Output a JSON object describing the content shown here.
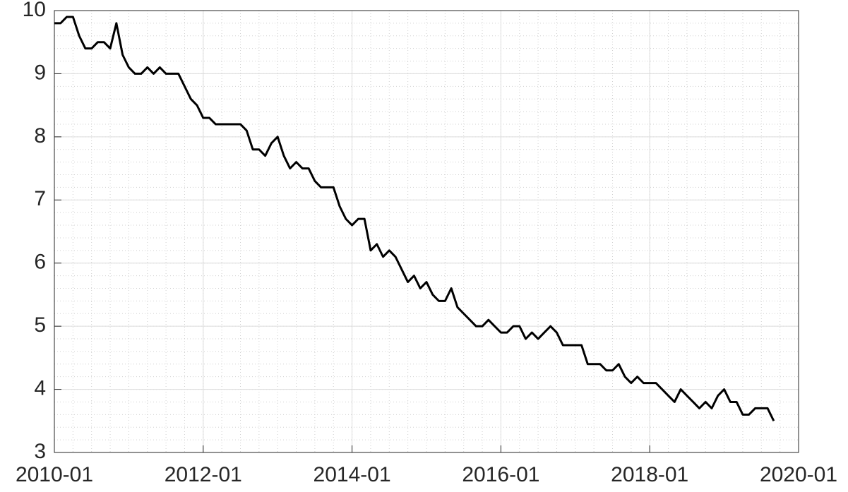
{
  "chart_data": {
    "type": "line",
    "x": [
      "2010-01",
      "2010-02",
      "2010-03",
      "2010-04",
      "2010-05",
      "2010-06",
      "2010-07",
      "2010-08",
      "2010-09",
      "2010-10",
      "2010-11",
      "2010-12",
      "2011-01",
      "2011-02",
      "2011-03",
      "2011-04",
      "2011-05",
      "2011-06",
      "2011-07",
      "2011-08",
      "2011-09",
      "2011-10",
      "2011-11",
      "2011-12",
      "2012-01",
      "2012-02",
      "2012-03",
      "2012-04",
      "2012-05",
      "2012-06",
      "2012-07",
      "2012-08",
      "2012-09",
      "2012-10",
      "2012-11",
      "2012-12",
      "2013-01",
      "2013-02",
      "2013-03",
      "2013-04",
      "2013-05",
      "2013-06",
      "2013-07",
      "2013-08",
      "2013-09",
      "2013-10",
      "2013-11",
      "2013-12",
      "2014-01",
      "2014-02",
      "2014-03",
      "2014-04",
      "2014-05",
      "2014-06",
      "2014-07",
      "2014-08",
      "2014-09",
      "2014-10",
      "2014-11",
      "2014-12",
      "2015-01",
      "2015-02",
      "2015-03",
      "2015-04",
      "2015-05",
      "2015-06",
      "2015-07",
      "2015-08",
      "2015-09",
      "2015-10",
      "2015-11",
      "2015-12",
      "2016-01",
      "2016-02",
      "2016-03",
      "2016-04",
      "2016-05",
      "2016-06",
      "2016-07",
      "2016-08",
      "2016-09",
      "2016-10",
      "2016-11",
      "2016-12",
      "2017-01",
      "2017-02",
      "2017-03",
      "2017-04",
      "2017-05",
      "2017-06",
      "2017-07",
      "2017-08",
      "2017-09",
      "2017-10",
      "2017-11",
      "2017-12",
      "2018-01",
      "2018-02",
      "2018-03",
      "2018-04",
      "2018-05",
      "2018-06",
      "2018-07",
      "2018-08",
      "2018-09",
      "2018-10",
      "2018-11",
      "2018-12",
      "2019-01",
      "2019-02",
      "2019-03",
      "2019-04",
      "2019-05",
      "2019-06",
      "2019-07",
      "2019-08",
      "2019-09"
    ],
    "series": [
      {
        "color": "#000000",
        "values": [
          9.8,
          9.8,
          9.9,
          9.9,
          9.6,
          9.4,
          9.4,
          9.5,
          9.5,
          9.4,
          9.8,
          9.3,
          9.1,
          9.0,
          9.0,
          9.1,
          9.0,
          9.1,
          9.0,
          9.0,
          9.0,
          8.8,
          8.6,
          8.5,
          8.3,
          8.3,
          8.2,
          8.2,
          8.2,
          8.2,
          8.2,
          8.1,
          7.8,
          7.8,
          7.7,
          7.9,
          8.0,
          7.7,
          7.5,
          7.6,
          7.5,
          7.5,
          7.3,
          7.2,
          7.2,
          7.2,
          6.9,
          6.7,
          6.6,
          6.7,
          6.7,
          6.2,
          6.3,
          6.1,
          6.2,
          6.1,
          5.9,
          5.7,
          5.8,
          5.6,
          5.7,
          5.5,
          5.4,
          5.4,
          5.6,
          5.3,
          5.2,
          5.1,
          5.0,
          5.0,
          5.1,
          5.0,
          4.9,
          4.9,
          5.0,
          5.0,
          4.8,
          4.9,
          4.8,
          4.9,
          5.0,
          4.9,
          4.7,
          4.7,
          4.7,
          4.7,
          4.4,
          4.4,
          4.4,
          4.3,
          4.3,
          4.4,
          4.2,
          4.1,
          4.2,
          4.1,
          4.1,
          4.1,
          4.0,
          3.9,
          3.8,
          4.0,
          3.9,
          3.8,
          3.7,
          3.8,
          3.7,
          3.9,
          4.0,
          3.8,
          3.8,
          3.6,
          3.6,
          3.7,
          3.7,
          3.7,
          3.5
        ]
      }
    ],
    "xlim": [
      "2010-01",
      "2020-01"
    ],
    "xticks": [
      "2010-01",
      "2012-01",
      "2014-01",
      "2016-01",
      "2018-01",
      "2020-01"
    ],
    "ylim": [
      3,
      10
    ],
    "yticks": [
      3,
      4,
      5,
      6,
      7,
      8,
      9,
      10
    ],
    "grid": true,
    "minor_grid": true
  }
}
